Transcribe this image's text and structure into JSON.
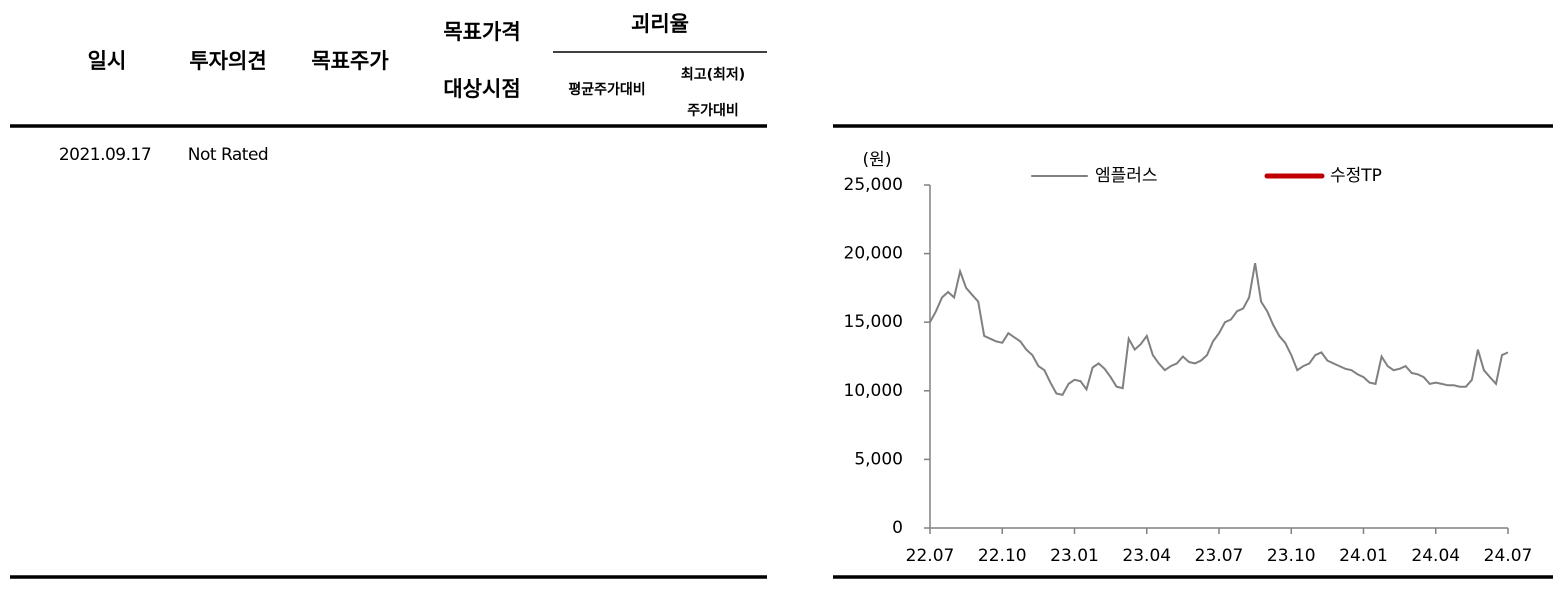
{
  "table": {
    "header": {
      "date": "일시",
      "opinion": "투자의견",
      "target": "목표주가",
      "target_period": [
        "목표가격",
        "대상시점"
      ],
      "gap": "괴리율",
      "gap_avg": "평균주가대비",
      "gap_high": [
        "최고(최저)",
        "주가대비"
      ]
    },
    "rows": [
      [
        "2021.09.17",
        "Not Rated"
      ]
    ]
  },
  "chart_data": {
    "type": "line",
    "y_unit": "(원)",
    "categories": [
      "22.07",
      null,
      null,
      null,
      null,
      null,
      null,
      null,
      null,
      null,
      null,
      null,
      "22.10",
      null,
      null,
      null,
      null,
      null,
      null,
      null,
      null,
      null,
      null,
      null,
      "23.01",
      null,
      null,
      null,
      null,
      null,
      null,
      null,
      null,
      null,
      null,
      null,
      "23.04",
      null,
      null,
      null,
      null,
      null,
      null,
      null,
      null,
      null,
      null,
      null,
      "23.07",
      null,
      null,
      null,
      null,
      null,
      null,
      null,
      null,
      null,
      null,
      null,
      "23.10",
      null,
      null,
      null,
      null,
      null,
      null,
      null,
      null,
      null,
      null,
      null,
      "24.01",
      null,
      null,
      null,
      null,
      null,
      null,
      null,
      null,
      null,
      null,
      null,
      "24.04",
      null,
      null,
      null,
      null,
      null,
      null,
      null,
      null,
      null,
      null,
      null,
      "24.07"
    ],
    "series": [
      {
        "name": "엠플러스",
        "color": "#808080",
        "values": [
          15000,
          15800,
          16800,
          17200,
          16800,
          18700,
          17500,
          17000,
          16500,
          14000,
          13800,
          13600,
          13500,
          14200,
          13900,
          13600,
          13000,
          12600,
          11800,
          11500,
          10600,
          9800,
          9700,
          10500,
          10800,
          10700,
          10100,
          11700,
          12000,
          11600,
          11000,
          10300,
          10200,
          13800,
          13000,
          13400,
          14000,
          12600,
          12000,
          11500,
          11800,
          12000,
          12500,
          12100,
          12000,
          12200,
          12600,
          13600,
          14200,
          15000,
          15200,
          15800,
          16000,
          16800,
          19300,
          16500,
          15800,
          14800,
          14000,
          13500,
          12600,
          11500,
          11800,
          12000,
          12600,
          12800,
          12200,
          12000,
          11800,
          11600,
          11500,
          11200,
          11000,
          10600,
          10500,
          12500,
          11800,
          11500,
          11600,
          11800,
          11300,
          11200,
          11000,
          10500,
          10600,
          10500,
          10400,
          10400,
          10300,
          10300,
          10800,
          13000,
          11500,
          11000,
          10500,
          12600,
          12800
        ]
      },
      {
        "name": "수정TP",
        "color": "#c00000",
        "values": [
          null,
          null,
          null,
          null,
          null,
          null,
          null,
          null,
          null,
          null,
          null,
          null,
          null,
          null,
          null,
          null,
          null,
          null,
          null,
          null,
          null,
          null,
          null,
          null,
          null,
          null,
          null,
          null,
          null,
          null,
          null,
          null,
          null,
          null,
          null,
          null,
          null,
          null,
          null,
          null,
          null,
          null,
          null,
          null,
          null,
          null,
          null,
          null,
          null,
          null,
          null,
          null,
          null,
          null,
          null,
          null,
          null,
          null,
          null,
          null,
          null,
          null,
          null,
          null,
          null,
          null,
          null,
          null,
          null,
          null,
          null,
          null,
          null,
          null,
          null,
          null,
          null,
          null,
          null,
          null,
          null,
          null,
          null,
          null,
          null,
          null,
          null,
          null,
          null,
          null,
          null,
          null,
          null,
          null,
          null,
          null,
          null
        ]
      }
    ],
    "ylim": [
      0,
      25000
    ],
    "yticks": [
      0,
      {
        "value": 5000,
        "label": "5,000"
      },
      {
        "value": 10000,
        "label": "10,000"
      },
      {
        "value": 15000,
        "label": "15,000"
      },
      {
        "value": 20000,
        "label": "20,000"
      },
      {
        "value": 25000,
        "label": "25,000"
      }
    ]
  }
}
